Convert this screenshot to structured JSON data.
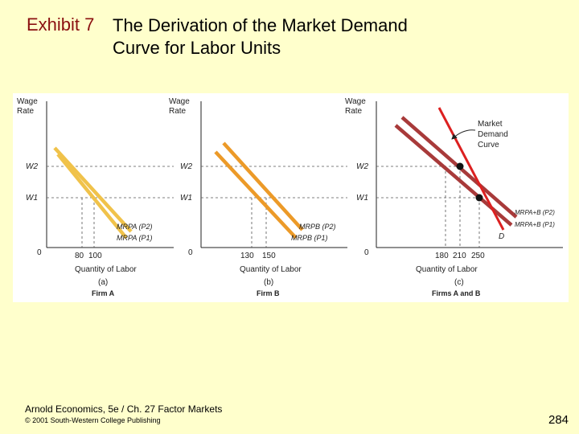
{
  "title": {
    "prefix": "Exhibit 7",
    "line1": "The Derivation of the Market Demand",
    "line2": "Curve for Labor Units"
  },
  "colors": {
    "firm_a": "#f0c24a",
    "firm_b": "#ec9a28",
    "market_dark": "#a83a3a",
    "market_red": "#dc2020",
    "panel_bg": "#ffffff",
    "dash": "#555555"
  },
  "panels": [
    {
      "y_label_1": "Wage",
      "y_label_2": "Rate",
      "w2": "W2",
      "w1": "W1",
      "origin": "0",
      "x_ticks": [
        "80",
        "100"
      ],
      "x_label": "Quantity of Labor",
      "panel_letter": "(a)",
      "firm": "Firm A",
      "curve_labels": [
        "MRPA (P2)",
        "MRPA (P1)"
      ]
    },
    {
      "y_label_1": "Wage",
      "y_label_2": "Rate",
      "w2": "W2",
      "w1": "W1",
      "origin": "0",
      "x_ticks": [
        "130",
        "150"
      ],
      "x_label": "Quantity of Labor",
      "panel_letter": "(b)",
      "firm": "Firm B",
      "curve_labels": [
        "MRPB (P2)",
        "MRPB (P1)"
      ]
    },
    {
      "y_label_1": "Wage",
      "y_label_2": "Rate",
      "w2": "W2",
      "w1": "W1",
      "origin": "0",
      "x_ticks": [
        "180",
        "210",
        "250"
      ],
      "x_label": "Quantity of Labor",
      "panel_letter": "(c)",
      "firm": "Firms A and B",
      "curve_labels": [
        "MRPA+B (P2)",
        "MRPA+B (P1)"
      ],
      "demand_label": "D",
      "callout": [
        "Market",
        "Demand",
        "Curve"
      ]
    }
  ],
  "footer": {
    "line1": "Arnold Economics, 5e / Ch. 27 Factor Markets",
    "line2": "© 2001 South-Western College Publishing"
  },
  "page_number": "284"
}
